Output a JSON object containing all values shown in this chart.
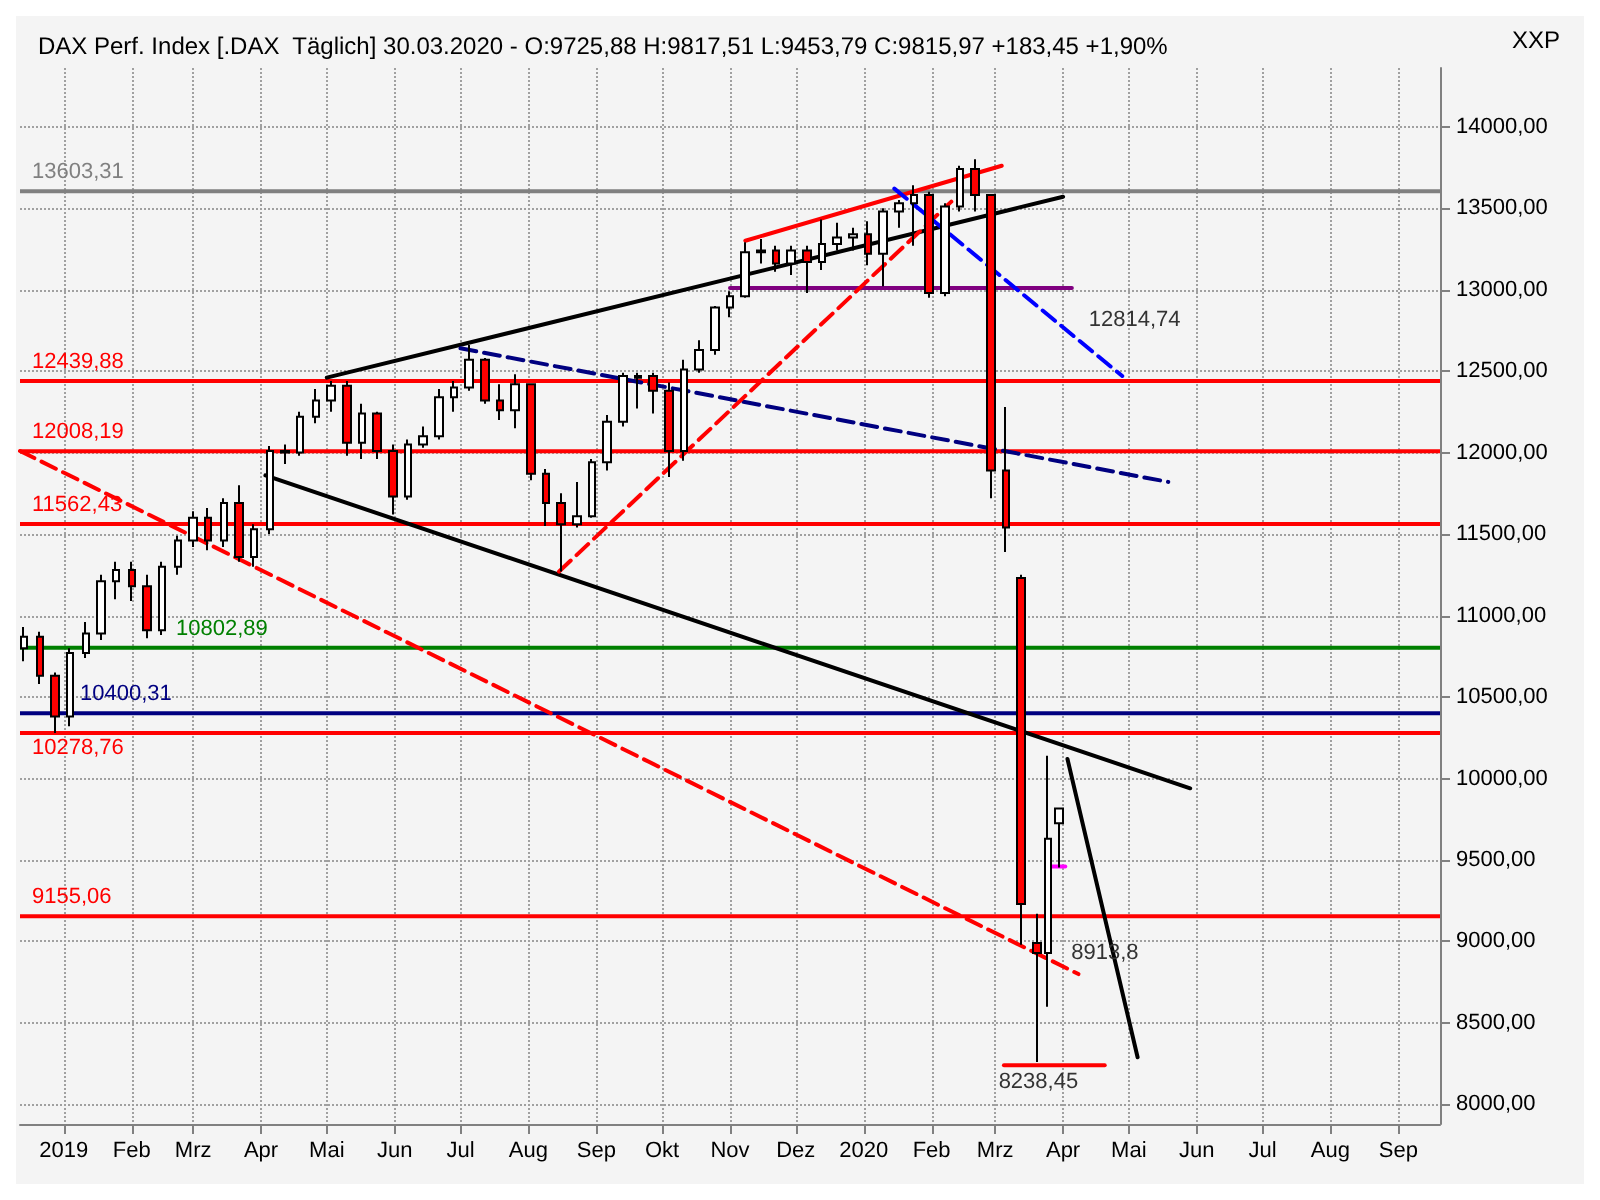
{
  "chart_data": {
    "type": "candlestick",
    "title": "DAX Perf. Index [.DAX  Täglich] 30.03.2020 - O:9725,88 H:9817,51 L:9453,79 C:9815,97 +183,45 +1,90%",
    "annotations": [
      "XXP",
      {
        "text": "12814,74",
        "x": "2020-04-10",
        "y": 12670
      },
      {
        "text": "8913,8",
        "x": "2020-04-02",
        "y": 8913.8
      },
      {
        "text": "8238,45",
        "x": "2020-03-27",
        "y": 8240
      }
    ],
    "x": [
      "2018-12-14",
      "2018-12-21",
      "2018-12-28",
      "2019-01-04",
      "2019-01-11",
      "2019-01-18",
      "2019-01-25",
      "2019-02-01",
      "2019-02-08",
      "2019-02-15",
      "2019-02-22",
      "2019-03-01",
      "2019-03-08",
      "2019-03-15",
      "2019-03-22",
      "2019-03-29",
      "2019-04-05",
      "2019-04-12",
      "2019-04-19",
      "2019-04-26",
      "2019-05-03",
      "2019-05-10",
      "2019-05-17",
      "2019-05-24",
      "2019-05-31",
      "2019-06-07",
      "2019-06-14",
      "2019-06-21",
      "2019-06-28",
      "2019-07-05",
      "2019-07-12",
      "2019-07-19",
      "2019-07-26",
      "2019-08-02",
      "2019-08-09",
      "2019-08-16",
      "2019-08-23",
      "2019-08-30",
      "2019-09-06",
      "2019-09-13",
      "2019-09-20",
      "2019-09-27",
      "2019-10-04",
      "2019-10-11",
      "2019-10-18",
      "2019-10-25",
      "2019-11-01",
      "2019-11-08",
      "2019-11-15",
      "2019-11-22",
      "2019-11-29",
      "2019-12-06",
      "2019-12-13",
      "2019-12-20",
      "2019-12-27",
      "2020-01-03",
      "2020-01-10",
      "2020-01-17",
      "2020-01-24",
      "2020-01-31",
      "2020-02-07",
      "2020-02-14",
      "2020-02-21",
      "2020-02-28",
      "2020-03-06",
      "2020-03-13",
      "2020-03-20",
      "2020-03-25",
      "2020-03-30"
    ],
    "ohlc": [
      [
        10800,
        10930,
        10720,
        10870
      ],
      [
        10870,
        10900,
        10580,
        10630
      ],
      [
        10630,
        10650,
        10280,
        10380
      ],
      [
        10380,
        10800,
        10320,
        10770
      ],
      [
        10770,
        10960,
        10740,
        10890
      ],
      [
        10890,
        11250,
        10850,
        11210
      ],
      [
        11210,
        11330,
        11100,
        11280
      ],
      [
        11280,
        11330,
        11090,
        11180
      ],
      [
        11180,
        11250,
        10860,
        10910
      ],
      [
        10910,
        11330,
        10880,
        11300
      ],
      [
        11300,
        11490,
        11250,
        11460
      ],
      [
        11460,
        11640,
        11420,
        11600
      ],
      [
        11600,
        11660,
        11400,
        11460
      ],
      [
        11460,
        11720,
        11420,
        11690
      ],
      [
        11690,
        11800,
        11330,
        11360
      ],
      [
        11360,
        11560,
        11300,
        11530
      ],
      [
        11530,
        12040,
        11500,
        12010
      ],
      [
        12010,
        12050,
        11930,
        12000
      ],
      [
        12000,
        12250,
        11980,
        12220
      ],
      [
        12220,
        12390,
        12180,
        12320
      ],
      [
        12320,
        12440,
        12250,
        12410
      ],
      [
        12410,
        12440,
        11980,
        12060
      ],
      [
        12060,
        12300,
        11960,
        12240
      ],
      [
        12240,
        12250,
        11960,
        12010
      ],
      [
        12010,
        12050,
        11620,
        11730
      ],
      [
        11730,
        12080,
        11710,
        12050
      ],
      [
        12050,
        12160,
        12030,
        12100
      ],
      [
        12100,
        12390,
        12080,
        12340
      ],
      [
        12340,
        12440,
        12250,
        12400
      ],
      [
        12400,
        12660,
        12380,
        12570
      ],
      [
        12570,
        12580,
        12300,
        12320
      ],
      [
        12320,
        12420,
        12200,
        12260
      ],
      [
        12260,
        12480,
        12150,
        12420
      ],
      [
        12420,
        12420,
        11830,
        11870
      ],
      [
        11870,
        11900,
        11550,
        11690
      ],
      [
        11690,
        11750,
        11270,
        11560
      ],
      [
        11560,
        11820,
        11540,
        11610
      ],
      [
        11610,
        11960,
        11600,
        11940
      ],
      [
        11940,
        12230,
        11890,
        12190
      ],
      [
        12190,
        12490,
        12160,
        12470
      ],
      [
        12470,
        12490,
        12270,
        12460
      ],
      [
        12470,
        12490,
        12240,
        12380
      ],
      [
        12380,
        12430,
        11850,
        12010
      ],
      [
        12010,
        12570,
        11950,
        12510
      ],
      [
        12510,
        12690,
        12490,
        12630
      ],
      [
        12630,
        12900,
        12600,
        12890
      ],
      [
        12890,
        12990,
        12830,
        12960
      ],
      [
        12960,
        13290,
        12950,
        13230
      ],
      [
        13230,
        13310,
        13160,
        13240
      ],
      [
        13240,
        13270,
        13110,
        13160
      ],
      [
        13160,
        13270,
        13090,
        13240
      ],
      [
        13240,
        13270,
        12980,
        13170
      ],
      [
        13170,
        13430,
        13120,
        13280
      ],
      [
        13280,
        13410,
        13240,
        13320
      ],
      [
        13320,
        13380,
        13240,
        13340
      ],
      [
        13340,
        13420,
        13150,
        13220
      ],
      [
        13220,
        13500,
        13020,
        13480
      ],
      [
        13480,
        13550,
        13380,
        13530
      ],
      [
        13530,
        13640,
        13270,
        13580
      ],
      [
        13580,
        13600,
        12950,
        12980
      ],
      [
        12980,
        13530,
        12960,
        13510
      ],
      [
        13510,
        13760,
        13480,
        13740
      ],
      [
        13740,
        13800,
        13480,
        13580
      ],
      [
        13580,
        13580,
        11720,
        11890
      ],
      [
        11890,
        12280,
        11390,
        11540
      ],
      [
        11230,
        11250,
        8980,
        9230
      ],
      [
        8990,
        9170,
        8260,
        8930
      ],
      [
        8930,
        10140,
        8600,
        9630
      ],
      [
        9725.88,
        9817.51,
        9453.79,
        9815.97
      ]
    ],
    "series": [
      {
        "type": "line",
        "color": "#000000",
        "x": [
          "2019-05-01",
          "2020-04-01"
        ],
        "values": [
          12460,
          13570
        ]
      },
      {
        "type": "line",
        "color": "#000000",
        "x": [
          "2019-04-03",
          "2020-05-29"
        ],
        "values": [
          11860,
          9940
        ]
      },
      {
        "type": "line",
        "color": "#000080",
        "line_style": "dashed",
        "x": [
          "2019-07-01",
          "2020-05-19"
        ],
        "values": [
          12640,
          11820
        ]
      },
      {
        "type": "line",
        "color": "#800080",
        "x": [
          "2019-11-01",
          "2020-04-05"
        ],
        "values": [
          13010,
          13010
        ]
      },
      {
        "type": "line",
        "color": "#ff0000",
        "line_style": "dashed",
        "x": [
          "2018-12-12",
          "2020-04-08"
        ],
        "values": [
          12010,
          8800
        ]
      },
      {
        "type": "line",
        "color": "#ff0000",
        "line_style": "dashed",
        "x": [
          "2019-08-15",
          "2020-02-10"
        ],
        "values": [
          11270,
          13540
        ]
      },
      {
        "type": "line",
        "color": "#ff0000",
        "x": [
          "2019-11-08",
          "2020-03-04"
        ],
        "values": [
          13300,
          13760
        ]
      },
      {
        "type": "line",
        "color": "#0000ff",
        "line_style": "dashed",
        "x": [
          "2020-01-15",
          "2020-04-28"
        ],
        "values": [
          13620,
          12470
        ]
      },
      {
        "type": "line",
        "color": "#000000",
        "x": [
          "2020-04-03",
          "2020-05-05"
        ],
        "values": [
          10120,
          8290
        ]
      },
      {
        "type": "line",
        "color": "#ff00ff",
        "x": [
          "2020-03-25",
          "2020-04-02"
        ],
        "values": [
          9460,
          9460
        ]
      },
      {
        "type": "line",
        "color": "#ff0000",
        "x": [
          "2020-03-05",
          "2020-04-20"
        ],
        "values": [
          8240,
          8240
        ]
      }
    ],
    "ref_lines": [
      {
        "axis": "y",
        "value": 13603.31,
        "label": "13603,31",
        "color": "#808080"
      },
      {
        "axis": "y",
        "value": 12439.88,
        "label": "12439,88",
        "color": "#ff0000"
      },
      {
        "axis": "y",
        "value": 12008.19,
        "label": "12008,19",
        "color": "#ff0000"
      },
      {
        "axis": "y",
        "value": 11562.43,
        "label": "11562,43",
        "color": "#ff0000"
      },
      {
        "axis": "y",
        "value": 10802.89,
        "label": "10802,89",
        "color": "#008000"
      },
      {
        "axis": "y",
        "value": 10400.31,
        "label": "10400,31",
        "color": "#000080"
      },
      {
        "axis": "y",
        "value": 10278.76,
        "label": "10278,76",
        "color": "#ff0000"
      },
      {
        "axis": "y",
        "value": 9155.06,
        "label": "9155,06",
        "color": "#ff0000"
      }
    ],
    "xlim": [
      "2018-12-12",
      "2020-09-20"
    ],
    "xticks": [
      {
        "value": "2019-01-01",
        "label": "2019"
      },
      {
        "value": "2019-02-01",
        "label": "Feb"
      },
      {
        "value": "2019-03-01",
        "label": "Mrz"
      },
      {
        "value": "2019-04-01",
        "label": "Apr"
      },
      {
        "value": "2019-05-01",
        "label": "Mai"
      },
      {
        "value": "2019-06-01",
        "label": "Jun"
      },
      {
        "value": "2019-07-01",
        "label": "Jul"
      },
      {
        "value": "2019-08-01",
        "label": "Aug"
      },
      {
        "value": "2019-09-01",
        "label": "Sep"
      },
      {
        "value": "2019-10-01",
        "label": "Okt"
      },
      {
        "value": "2019-11-01",
        "label": "Nov"
      },
      {
        "value": "2019-12-01",
        "label": "Dez"
      },
      {
        "value": "2020-01-01",
        "label": "2020"
      },
      {
        "value": "2020-02-01",
        "label": "Feb"
      },
      {
        "value": "2020-03-01",
        "label": "Mrz"
      },
      {
        "value": "2020-04-01",
        "label": "Apr"
      },
      {
        "value": "2020-05-01",
        "label": "Mai"
      },
      {
        "value": "2020-06-01",
        "label": "Jun"
      },
      {
        "value": "2020-07-01",
        "label": "Jul"
      },
      {
        "value": "2020-08-01",
        "label": "Aug"
      },
      {
        "value": "2020-09-01",
        "label": "Sep"
      }
    ],
    "ylim": [
      7880,
      14360
    ],
    "yticks": [
      {
        "value": 8000,
        "label": "8000,00"
      },
      {
        "value": 8500,
        "label": "8500,00"
      },
      {
        "value": 9000,
        "label": "9000,00"
      },
      {
        "value": 9500,
        "label": "9500,00"
      },
      {
        "value": 10000,
        "label": "10000,00"
      },
      {
        "value": 10500,
        "label": "10500,00"
      },
      {
        "value": 11000,
        "label": "11000,00"
      },
      {
        "value": 11500,
        "label": "11500,00"
      },
      {
        "value": 12000,
        "label": "12000,00"
      },
      {
        "value": 12500,
        "label": "12500,00"
      },
      {
        "value": 13000,
        "label": "13000,00"
      },
      {
        "value": 13500,
        "label": "13500,00"
      },
      {
        "value": 14000,
        "label": "14000,00"
      }
    ],
    "grid": true
  }
}
